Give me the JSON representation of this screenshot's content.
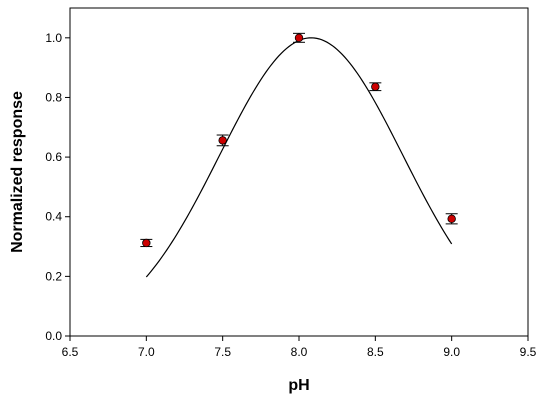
{
  "chart_data": {
    "type": "scatter",
    "title": "",
    "xlabel": "pH",
    "ylabel": "Normalized response",
    "xlim": [
      6.5,
      9.5
    ],
    "ylim": [
      0.0,
      1.1
    ],
    "xticks": [
      "6.5",
      "7.0",
      "7.5",
      "8.0",
      "8.5",
      "9.0",
      "9.5"
    ],
    "yticks": [
      "0.0",
      "0.2",
      "0.4",
      "0.6",
      "0.8",
      "1.0"
    ],
    "grid": false,
    "series": [
      {
        "x": [
          7.0,
          7.5,
          8.0,
          8.5,
          9.0
        ],
        "y": [
          0.312,
          0.656,
          1.0,
          0.836,
          0.393
        ],
        "err": [
          0.012,
          0.018,
          0.015,
          0.013,
          0.017
        ],
        "marker_color": "#cc0000"
      }
    ],
    "fit_curve": {
      "type": "gaussian",
      "amplitude": 1.0,
      "center": 8.08,
      "sigma": 0.6,
      "x_range": [
        7.0,
        9.0
      ],
      "color": "#000000"
    }
  }
}
